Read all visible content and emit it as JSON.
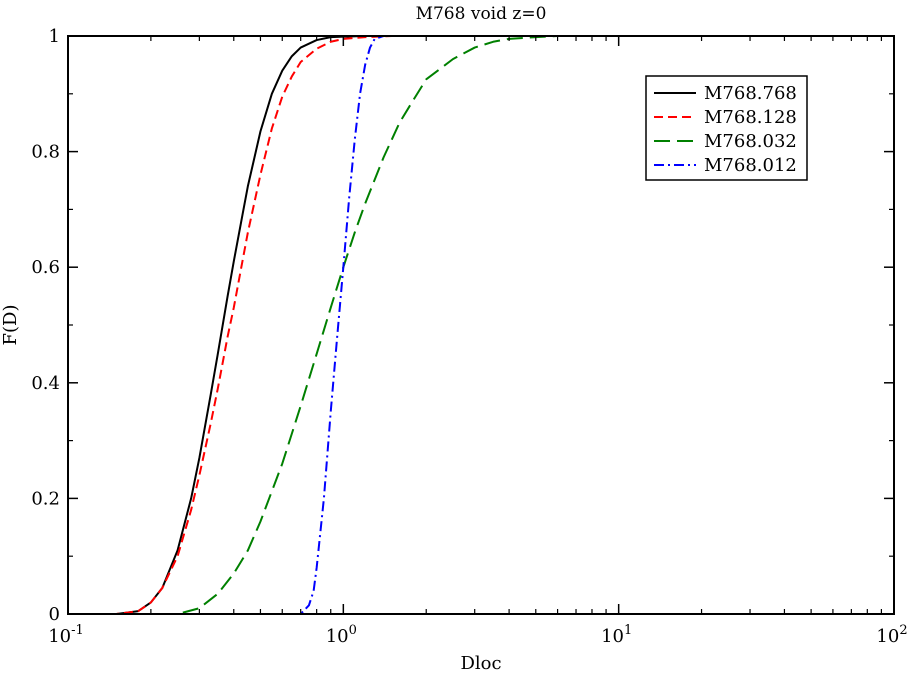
{
  "chart_data": {
    "type": "line",
    "title": "M768 void z=0",
    "xlabel": "Dloc",
    "ylabel": "F(D)",
    "xscale": "log",
    "xlim": [
      0.1,
      100
    ],
    "ylim": [
      0,
      1
    ],
    "grid": false,
    "legend_position": "top-right",
    "x_ticks": [
      {
        "value": 0.1,
        "base": "10",
        "exp": "-1"
      },
      {
        "value": 1,
        "base": "10",
        "exp": "0"
      },
      {
        "value": 10,
        "base": "10",
        "exp": "1"
      },
      {
        "value": 100,
        "base": "10",
        "exp": "2"
      }
    ],
    "y_ticks": [
      {
        "value": 0,
        "label": "0"
      },
      {
        "value": 0.2,
        "label": "0.2"
      },
      {
        "value": 0.4,
        "label": "0.4"
      },
      {
        "value": 0.6,
        "label": "0.6"
      },
      {
        "value": 0.8,
        "label": "0.8"
      },
      {
        "value": 1,
        "label": "1"
      }
    ],
    "series": [
      {
        "name": "M768.768",
        "color": "#000000",
        "dash": "solid",
        "x": [
          0.1,
          0.15,
          0.18,
          0.2,
          0.22,
          0.25,
          0.28,
          0.3,
          0.33,
          0.35,
          0.38,
          0.4,
          0.43,
          0.45,
          0.5,
          0.55,
          0.6,
          0.65,
          0.7,
          0.8,
          0.9,
          1.0,
          1.2,
          1.5,
          2.0,
          5.0,
          10,
          100
        ],
        "y": [
          0.0,
          0.0,
          0.005,
          0.02,
          0.045,
          0.11,
          0.2,
          0.27,
          0.38,
          0.45,
          0.55,
          0.61,
          0.69,
          0.74,
          0.835,
          0.9,
          0.94,
          0.965,
          0.98,
          0.993,
          0.998,
          0.999,
          1.0,
          1.0,
          1.0,
          1.0,
          1.0,
          1.0
        ]
      },
      {
        "name": "M768.128",
        "color": "#ff0000",
        "dash": "short",
        "x": [
          0.1,
          0.15,
          0.18,
          0.2,
          0.22,
          0.25,
          0.28,
          0.3,
          0.33,
          0.35,
          0.38,
          0.4,
          0.43,
          0.45,
          0.5,
          0.55,
          0.6,
          0.65,
          0.7,
          0.8,
          0.9,
          1.0,
          1.2,
          1.5,
          2.0,
          5.0,
          10,
          100
        ],
        "y": [
          0.0,
          0.0,
          0.005,
          0.02,
          0.045,
          0.1,
          0.18,
          0.24,
          0.33,
          0.39,
          0.48,
          0.53,
          0.61,
          0.66,
          0.76,
          0.84,
          0.895,
          0.93,
          0.955,
          0.978,
          0.99,
          0.995,
          0.998,
          1.0,
          1.0,
          1.0,
          1.0,
          1.0
        ]
      },
      {
        "name": "M768.032",
        "color": "#008000",
        "dash": "long",
        "x": [
          0.1,
          0.2,
          0.25,
          0.3,
          0.35,
          0.4,
          0.45,
          0.5,
          0.6,
          0.7,
          0.8,
          0.9,
          1.0,
          1.1,
          1.2,
          1.4,
          1.6,
          1.8,
          2.0,
          2.5,
          3.0,
          3.5,
          4.0,
          5.0,
          6.0,
          10,
          100
        ],
        "y": [
          0.0,
          0.0,
          0.0,
          0.01,
          0.035,
          0.07,
          0.11,
          0.16,
          0.26,
          0.36,
          0.45,
          0.53,
          0.6,
          0.66,
          0.71,
          0.79,
          0.85,
          0.89,
          0.925,
          0.96,
          0.98,
          0.99,
          0.995,
          0.998,
          1.0,
          1.0,
          1.0
        ]
      },
      {
        "name": "M768.012",
        "color": "#0000ff",
        "dash": "dashdot",
        "x": [
          0.1,
          0.5,
          0.7,
          0.75,
          0.78,
          0.8,
          0.85,
          0.9,
          0.95,
          1.0,
          1.05,
          1.1,
          1.15,
          1.2,
          1.25,
          1.3,
          1.4,
          1.5,
          2.0,
          10,
          100
        ],
        "y": [
          0.0,
          0.0,
          0.0,
          0.015,
          0.04,
          0.08,
          0.2,
          0.35,
          0.48,
          0.6,
          0.72,
          0.82,
          0.9,
          0.95,
          0.98,
          0.995,
          1.0,
          1.0,
          1.0,
          1.0,
          1.0
        ]
      }
    ]
  }
}
